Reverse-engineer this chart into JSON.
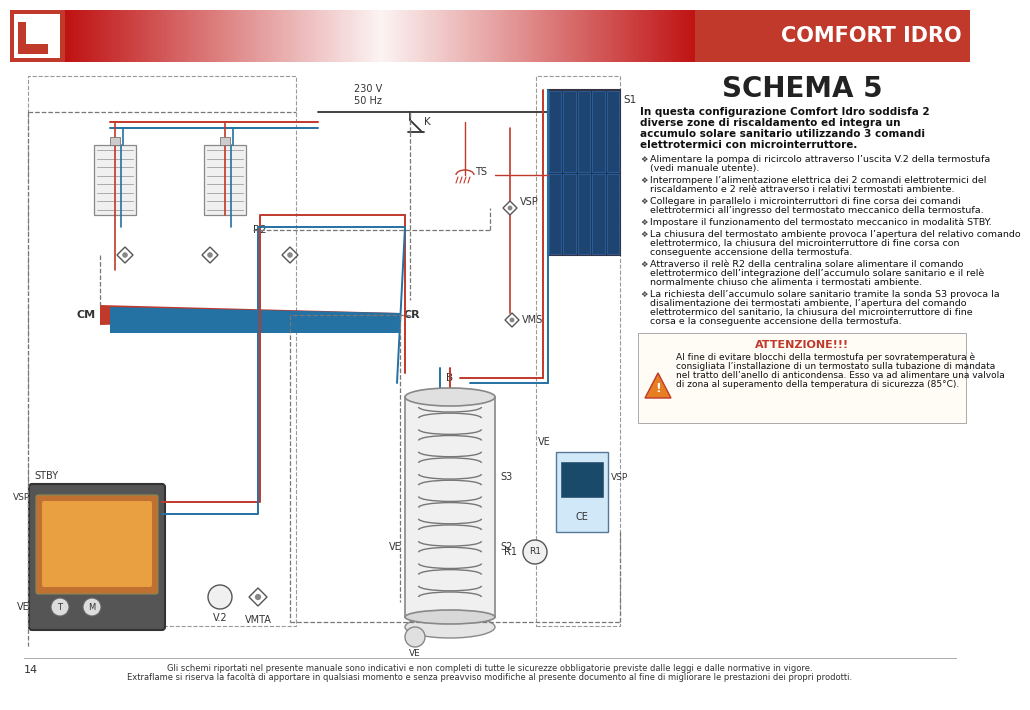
{
  "page_bg": "#ffffff",
  "header_color": "#c0392b",
  "header_text": "COMFORT IDRO",
  "title": "SCHEMA 5",
  "intro_bold": "In questa configurazione Comfort Idro soddisfa 2 diverse zone di riscaldamento ed integra un accumulo solare sanitario utilizzando 3 comandi elettrotermici con microinterruttore.",
  "bullets": [
    "Alimentare la pompa di ricircolo attraverso l’uscita V.2 della termostufa (vedi manuale utente).",
    "Interrompere l’alimentazione elettrica dei 2 comandi elettrotermici del riscaldamento e 2 relè attraverso i relativi termostati ambiente.",
    "Collegare in parallelo i microinterruttori di fine corsa dei comandi elettrotermici all’ingresso del termostato meccanico della termostufa.",
    "Impostare il funzionamento del termostato meccanico in modalità STBY.",
    "La chiusura del termostato ambiente provoca l’apertura del relativo comando elettrotermico, la chiusura del microinterruttore di fine corsa con conseguente accensione della termostufa.",
    "Attraverso il relè R2 della centralina solare alimentare il comando elettrotermico dell’integrazione dell’accumulo solare sanitario e il relè normalmente chiuso che alimenta i termostati ambiente.",
    "La richiesta dell’accumulo solare sanitario tramite la sonda S3 provoca la disalimentazione dei termostati ambiente, l’apertura del comando elettrotermico del sanitario, la chiusura del microinterruttore di fine corsa e la conseguente accensione della termostufa."
  ],
  "attenzione_title": "ATTENZIONE!!!",
  "attenzione_text": "Al fine di evitare blocchi della termostufa per sovratemperatura è consigliata l’installazione di un termostato sulla tubazione di mandata nel tratto dell’anello di anticondensa. Esso va ad alimentare una valvola di zona al superamento della temperatura di sicurezza (85°C).",
  "footer_text1": "Gli schemi riportati nel presente manuale sono indicativi e non completi di tutte le sicurezze obbligatorie previste dalle leggi e dalle normative in vigore.",
  "footer_text2": "Extraflame si riserva la facoltà di apportare in qualsiasi momento e senza preavviso modifiche al presente documento al fine di migliorare le prestazioni dei propri prodotti.",
  "footer_page": "14",
  "red_color": "#c0392b",
  "blue_color": "#2471a3",
  "pipe_red": "#c0392b",
  "pipe_blue": "#2471a3",
  "dash_color": "#777777",
  "dark_color": "#2c3e50"
}
